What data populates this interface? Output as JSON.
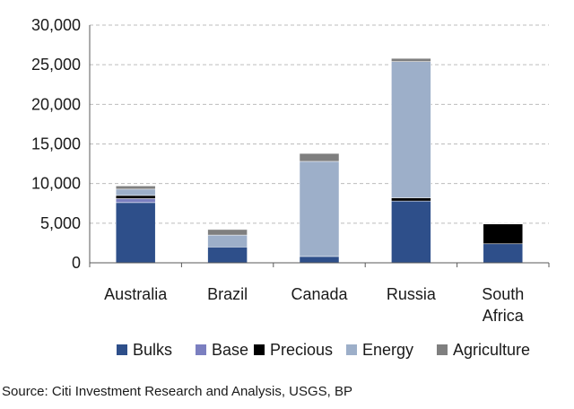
{
  "chart_data": {
    "type": "bar",
    "stacked": true,
    "categories": [
      "Australia",
      "Brazil",
      "Canada",
      "Russia",
      "South Africa"
    ],
    "category_lines": [
      [
        "Australia"
      ],
      [
        "Brazil"
      ],
      [
        "Canada"
      ],
      [
        "Russia"
      ],
      [
        "South",
        "Africa"
      ]
    ],
    "series": [
      {
        "name": "Bulks",
        "color": "#2e4f8a",
        "values": [
          7600,
          2000,
          800,
          7800,
          2400
        ]
      },
      {
        "name": "Base",
        "color": "#7b7fc0",
        "values": [
          500,
          0,
          0,
          0,
          0
        ]
      },
      {
        "name": "Precious",
        "color": "#000000",
        "values": [
          400,
          0,
          0,
          400,
          2500
        ]
      },
      {
        "name": "Energy",
        "color": "#9dafc9",
        "values": [
          800,
          1500,
          12000,
          17200,
          50
        ]
      },
      {
        "name": "Agriculture",
        "color": "#7f7f7f",
        "values": [
          400,
          700,
          1000,
          400,
          50
        ]
      }
    ],
    "ylim": [
      0,
      30000
    ],
    "yticks": [
      0,
      5000,
      10000,
      15000,
      20000,
      25000,
      30000
    ],
    "ytick_labels": [
      "0",
      "5,000",
      "10,000",
      "15,000",
      "20,000",
      "25,000",
      "30,000"
    ],
    "grid": "horizontal-dashed",
    "legend_position": "bottom",
    "title": "",
    "xlabel": "",
    "ylabel": ""
  },
  "source_text": "Source: Citi Investment Research and Analysis, USGS, BP"
}
